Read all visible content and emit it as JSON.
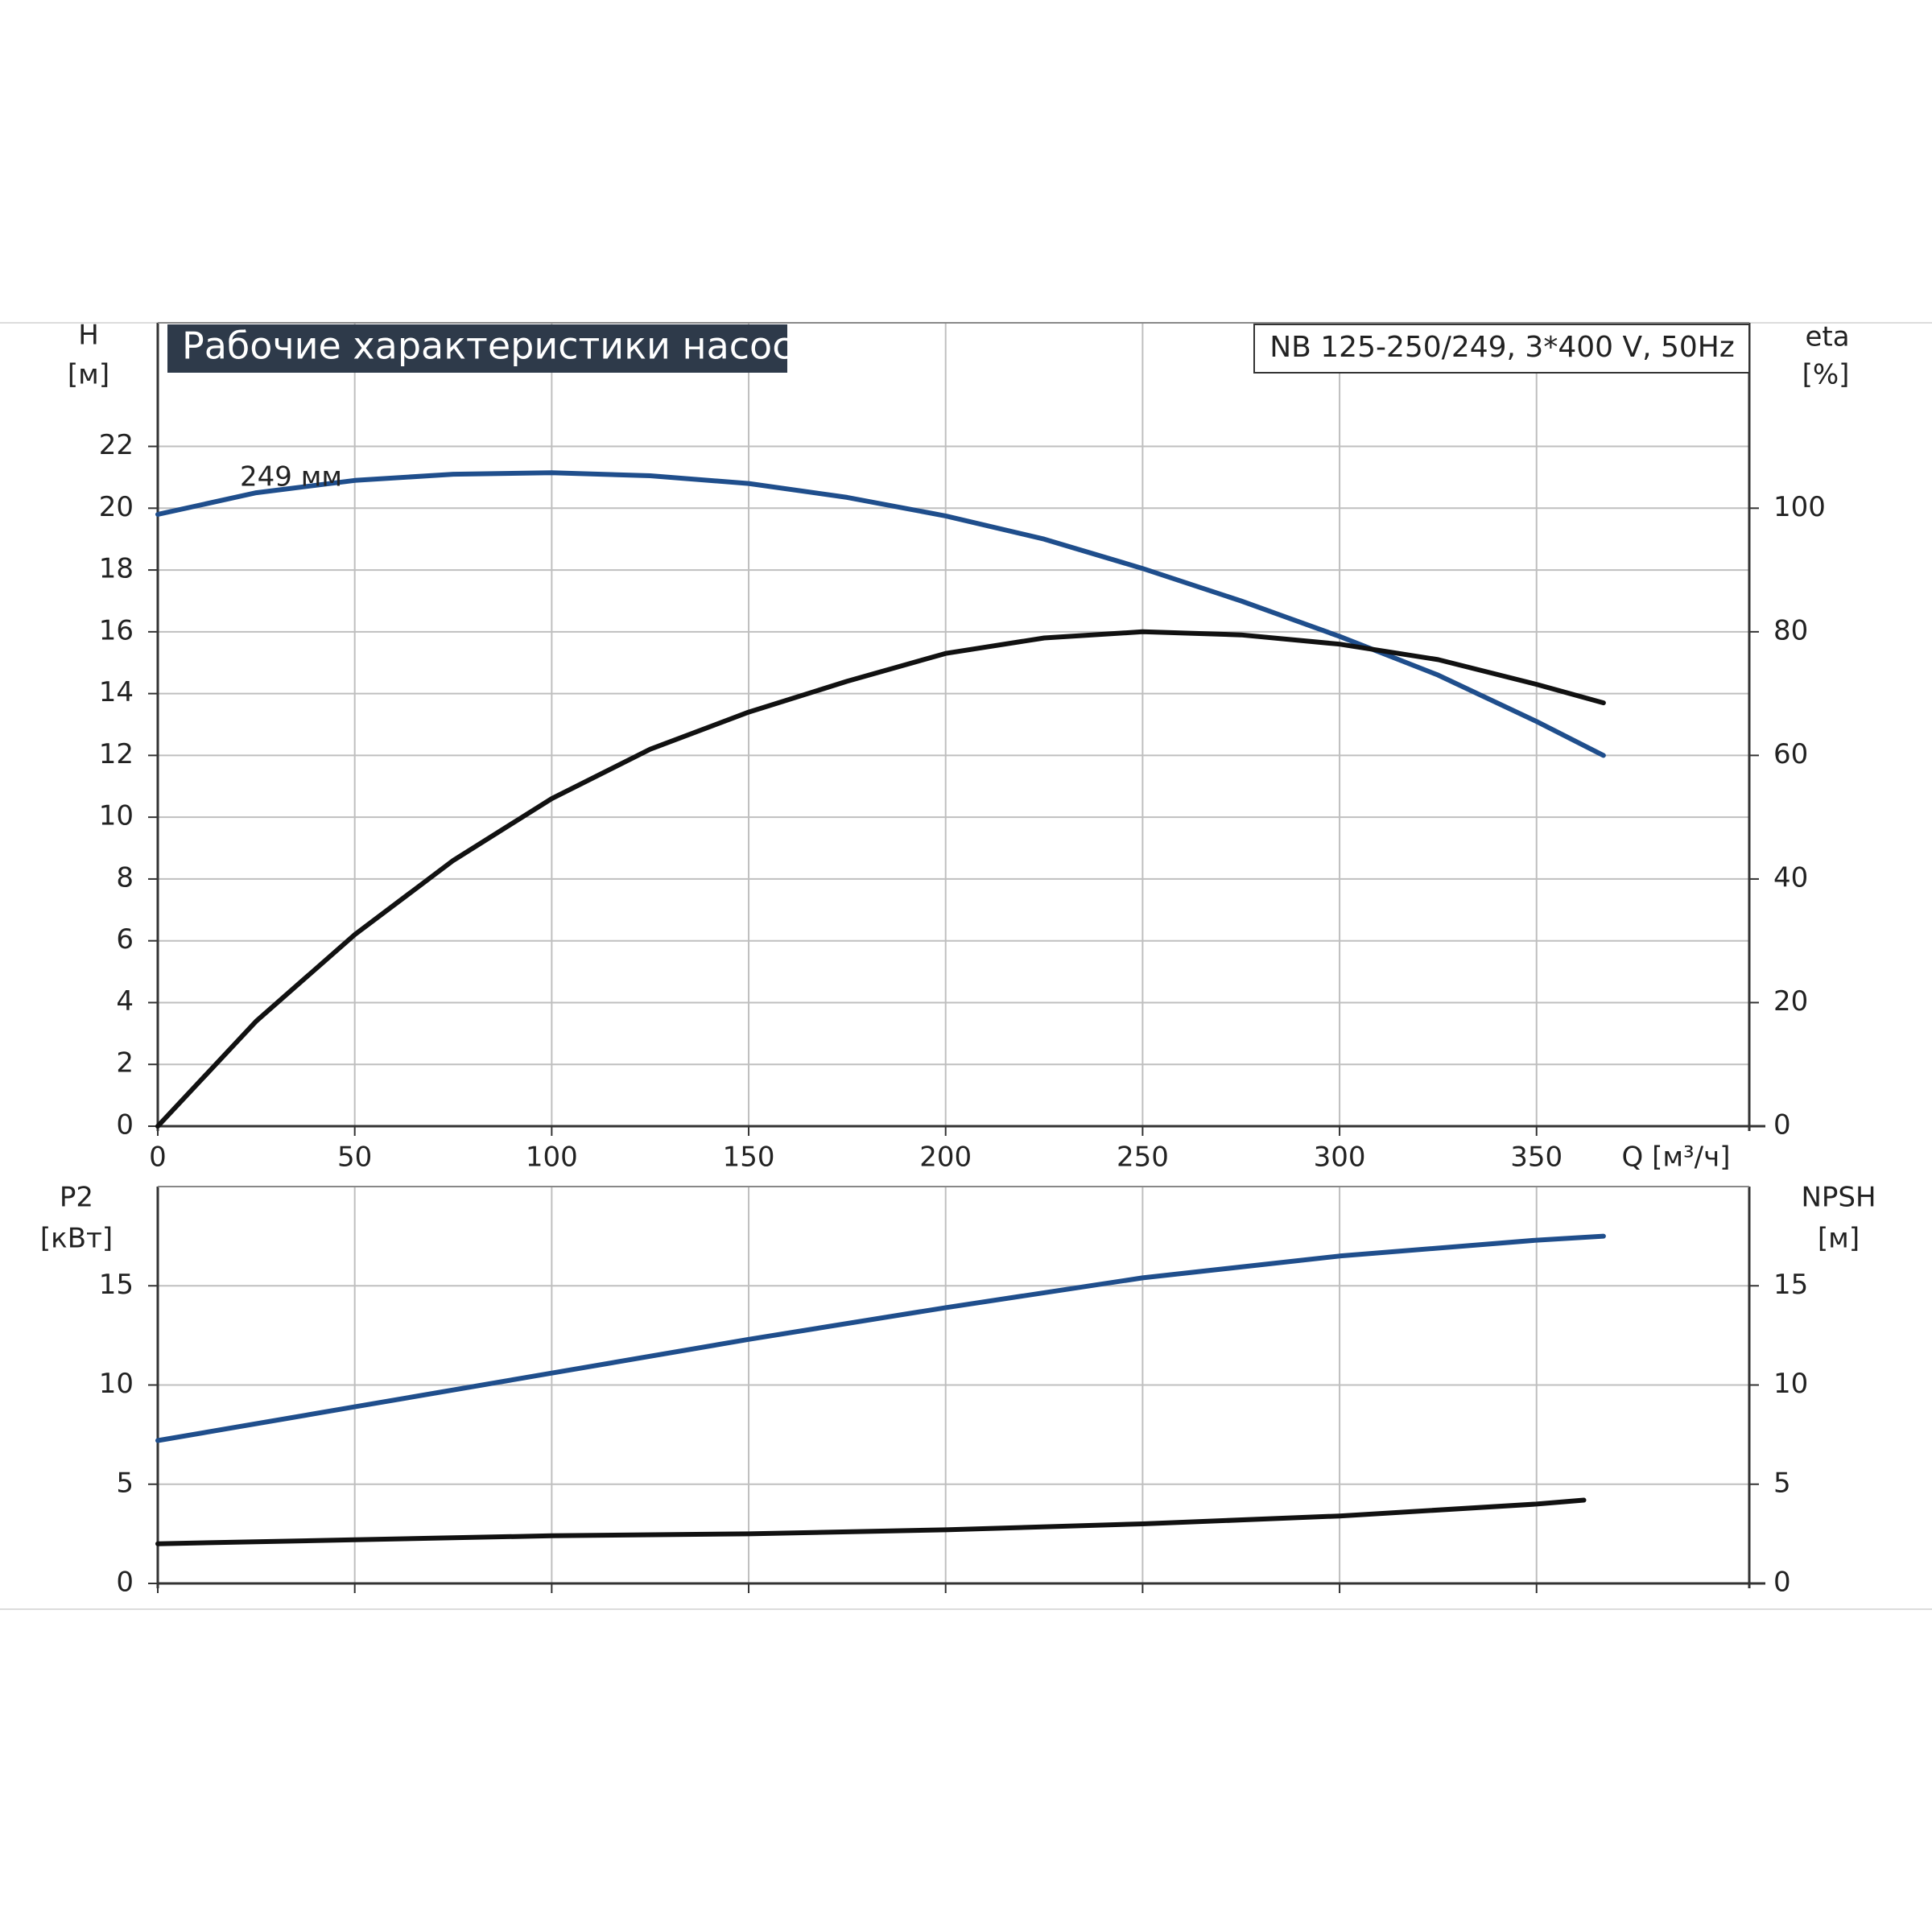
{
  "chart_data": [
    {
      "type": "line",
      "title": "Рабочие характеристики насоса",
      "subtitle": "NB 125-250/249, 3*400 V, 50Hz",
      "ylabel": "H",
      "yunit": "[м]",
      "y2label": "eta",
      "y2unit": "[%]",
      "xlabel": "Q [м³/ч]",
      "annotation": "249 мм",
      "xlim": [
        0,
        404
      ],
      "xticks": [
        0,
        50,
        100,
        150,
        200,
        250,
        300,
        350
      ],
      "ylim": [
        0,
        26
      ],
      "yticks": [
        0,
        2,
        4,
        6,
        8,
        10,
        12,
        14,
        16,
        18,
        20,
        22
      ],
      "y2lim": [
        0,
        130
      ],
      "y2ticks": [
        0,
        20,
        40,
        60,
        80,
        100
      ],
      "grid": true,
      "series": [
        {
          "name": "H",
          "color": "#1f4e8c",
          "x": [
            0,
            25,
            50,
            75,
            100,
            125,
            150,
            175,
            200,
            225,
            250,
            275,
            300,
            325,
            350,
            367
          ],
          "values": [
            19.8,
            20.5,
            20.9,
            21.1,
            21.15,
            21.05,
            20.8,
            20.35,
            19.75,
            19.0,
            18.05,
            17.0,
            15.85,
            14.6,
            13.1,
            12.0
          ]
        },
        {
          "name": "eta",
          "color": "#111111",
          "axis": "y2",
          "x": [
            0,
            25,
            50,
            75,
            100,
            125,
            150,
            175,
            200,
            225,
            250,
            275,
            300,
            325,
            350,
            367
          ],
          "values": [
            0,
            17,
            31,
            43,
            53,
            61,
            67,
            72,
            76.5,
            79,
            80,
            79.5,
            78,
            75.5,
            71.5,
            68.5
          ]
        }
      ]
    },
    {
      "type": "line",
      "ylabel": "P2",
      "yunit": "[кВт]",
      "y2label": "NPSH",
      "y2unit": "[м]",
      "xlim": [
        0,
        404
      ],
      "ylim": [
        0,
        20
      ],
      "yticks": [
        0,
        5,
        10,
        15
      ],
      "y2lim": [
        0,
        20
      ],
      "y2ticks": [
        0,
        5,
        10,
        15
      ],
      "grid": true,
      "series": [
        {
          "name": "P2",
          "color": "#1f4e8c",
          "x": [
            0,
            50,
            100,
            150,
            200,
            250,
            300,
            350,
            367
          ],
          "values": [
            7.2,
            8.9,
            10.6,
            12.3,
            13.9,
            15.4,
            16.5,
            17.3,
            17.5
          ]
        },
        {
          "name": "NPSH",
          "color": "#111111",
          "axis": "y2",
          "x": [
            0,
            50,
            100,
            150,
            200,
            250,
            300,
            350,
            362
          ],
          "values": [
            2.0,
            2.2,
            2.4,
            2.5,
            2.7,
            3.0,
            3.4,
            4.0,
            4.2
          ]
        }
      ]
    }
  ]
}
